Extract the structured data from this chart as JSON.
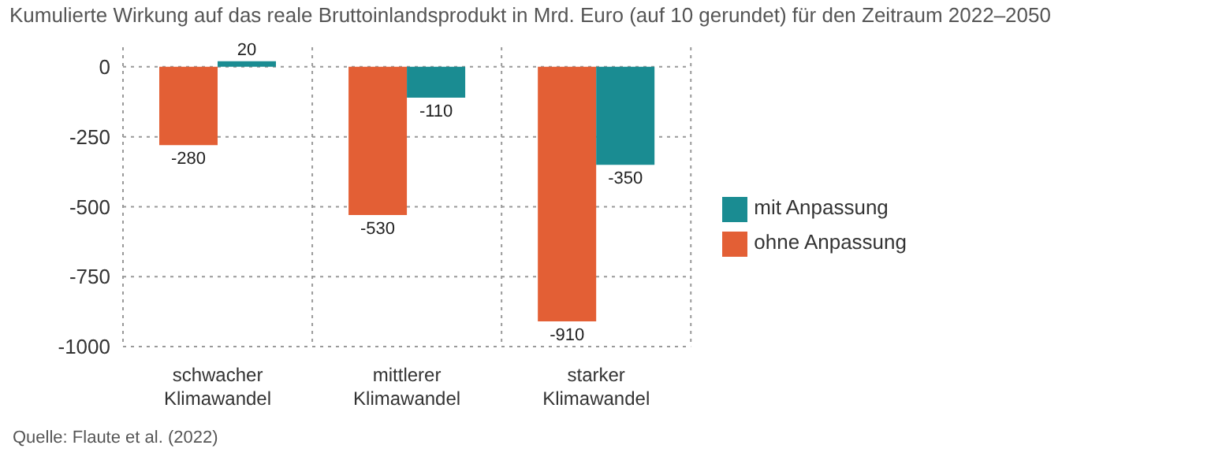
{
  "chart_data": {
    "type": "bar",
    "title": "Kumulierte Wirkung auf das reale Bruttoinlandsprodukt in Mrd. Euro (auf 10 gerundet) für den Zeitraum 2022–2050",
    "categories": [
      "schwacher Klimawandel",
      "mittlerer Klimawandel",
      "starker Klimawandel"
    ],
    "series": [
      {
        "name": "ohne Anpassung",
        "color": "#e35f35",
        "values": [
          -280,
          -530,
          -910
        ]
      },
      {
        "name": "mit Anpassung",
        "color": "#1a8c92",
        "values": [
          20,
          -110,
          -350
        ]
      }
    ],
    "ylim": [
      -1000,
      70
    ],
    "yticks": [
      0,
      -250,
      -500,
      -750,
      -1000
    ],
    "grid": true,
    "legend": "right",
    "data_labels": true,
    "annotations": [
      "Quelle: Flaute et al. (2022)"
    ]
  }
}
